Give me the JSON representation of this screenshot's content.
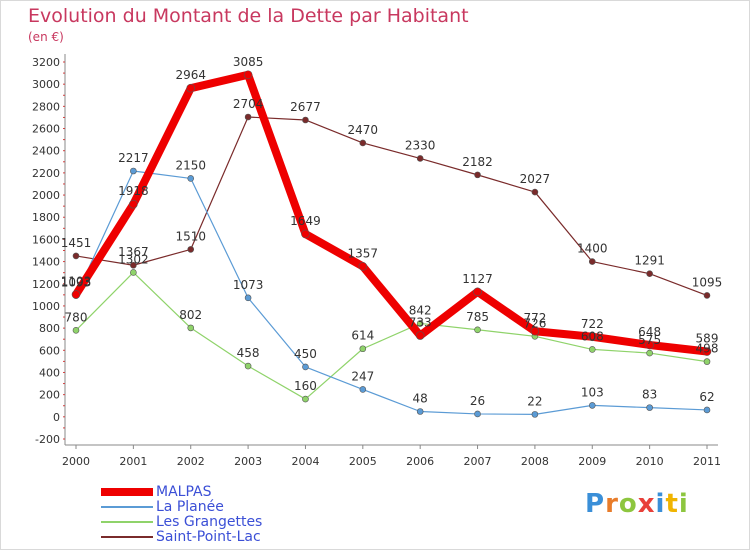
{
  "header": {
    "title": "Evolution du Montant de la Dette par Habitant",
    "unit": "(en €)"
  },
  "brand": {
    "text": "Proxiti",
    "colors": [
      "#3a8fd8",
      "#e87c2a",
      "#8dc63f",
      "#e8403a",
      "#3a8fd8",
      "#f0b400",
      "#8dc63f"
    ]
  },
  "chart_data": {
    "type": "line",
    "x": [
      "2000",
      "2001",
      "2002",
      "2003",
      "2004",
      "2005",
      "2006",
      "2007",
      "2008",
      "2009",
      "2010",
      "2011"
    ],
    "ylim": [
      -200,
      3200
    ],
    "yticks": [
      -200,
      0,
      200,
      400,
      600,
      800,
      1000,
      1200,
      1400,
      1600,
      1800,
      2000,
      2200,
      2400,
      2600,
      2800,
      3000,
      3200
    ],
    "grid": false,
    "legend": "bottom-left",
    "series": [
      {
        "name": "Saint-Point-Lac",
        "color": "#7a2b2b",
        "values": [
          1451,
          1367,
          1510,
          2704,
          2677,
          2470,
          2330,
          2182,
          2027,
          1400,
          1291,
          1095
        ]
      },
      {
        "name": "Les Grangettes",
        "color": "#8fd36a",
        "values": [
          780,
          1302,
          802,
          458,
          160,
          614,
          842,
          785,
          726,
          608,
          575,
          498
        ]
      },
      {
        "name": "La Planée",
        "color": "#5b9bd5",
        "values": [
          1093,
          2217,
          2150,
          1073,
          450,
          247,
          48,
          26,
          22,
          103,
          83,
          62
        ]
      },
      {
        "name": "MALPAS",
        "color": "#ee0000",
        "values": [
          1103,
          1918,
          2964,
          3085,
          1649,
          1357,
          733,
          1127,
          772,
          722,
          648,
          589
        ]
      }
    ]
  }
}
